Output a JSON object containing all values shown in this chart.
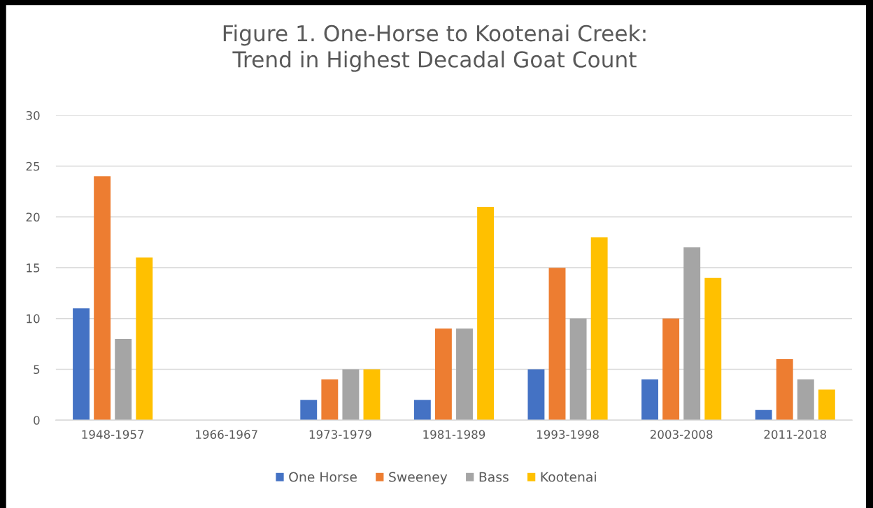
{
  "chart_data": {
    "type": "bar",
    "title": "Figure 1. One-Horse to Kootenai Creek:\nTrend in Highest Decadal Goat Count",
    "categories": [
      "1948-1957",
      "1966-1967",
      "1973-1979",
      "1981-1989",
      "1993-1998",
      "2003-2008",
      "2011-2018"
    ],
    "series": [
      {
        "name": "One Horse",
        "color": "#4472c4",
        "values": [
          11,
          null,
          2,
          2,
          5,
          4,
          1
        ]
      },
      {
        "name": "Sweeney",
        "color": "#ed7d31",
        "values": [
          24,
          null,
          4,
          9,
          15,
          10,
          6
        ]
      },
      {
        "name": "Bass",
        "color": "#a5a5a5",
        "values": [
          8,
          null,
          5,
          9,
          10,
          17,
          4
        ]
      },
      {
        "name": "Kootenai",
        "color": "#ffc000",
        "values": [
          16,
          null,
          5,
          21,
          18,
          14,
          3
        ]
      }
    ],
    "ylim": [
      0,
      30
    ],
    "yticks": [
      0,
      5,
      10,
      15,
      20,
      25,
      30
    ],
    "grid": "y",
    "legend": "bottom"
  }
}
